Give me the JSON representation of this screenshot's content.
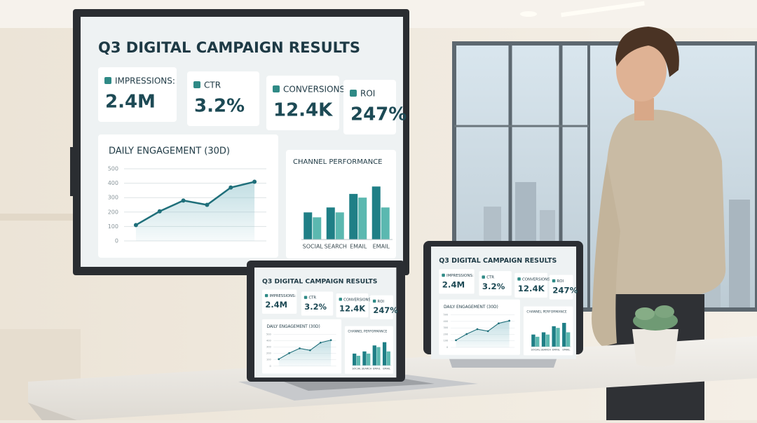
{
  "screen": {
    "title": "Q3 DIGITAL CAMPAIGN RESULTS",
    "kpis": [
      {
        "label": "IMPRESSIONS:",
        "value": "2.4M"
      },
      {
        "label": "CTR",
        "value": "3.2%"
      },
      {
        "label": "CONVERSIONS:",
        "value": "12.4K"
      },
      {
        "label": "ROI",
        "value": "247%"
      }
    ],
    "engagement": {
      "type": "line",
      "title": "DAILY ENGAGEMENT (30D)",
      "categories": [
        null,
        null,
        null,
        null,
        null,
        null
      ],
      "values": [
        110,
        205,
        280,
        250,
        370,
        410
      ],
      "color": "#1f6f7a",
      "ylim": [
        0,
        500
      ],
      "yticks": [
        0,
        100,
        200,
        300,
        400,
        500
      ],
      "grid": true
    },
    "channels": {
      "type": "bar",
      "title": "CHANNEL PERFORMANCE",
      "categories": [
        "SOCIAL",
        "SEARCH",
        "EMAIL",
        "EMAIL"
      ],
      "series": [
        {
          "color": "#1f7f86",
          "values": [
            220,
            260,
            370,
            430
          ]
        },
        {
          "color": "#5bb8b0",
          "values": [
            180,
            220,
            340,
            260
          ]
        }
      ],
      "ylim": [
        0,
        500
      ]
    }
  }
}
